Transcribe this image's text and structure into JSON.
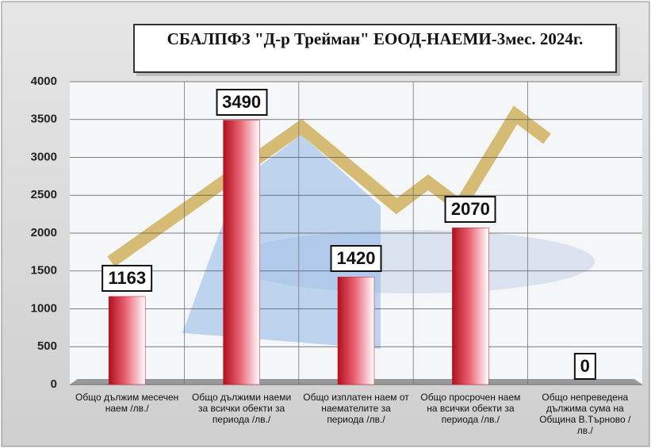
{
  "chart_data": {
    "type": "bar",
    "title": "СБАЛПФЗ \"Д-р Трейман\" ЕООД-НАЕМИ-3мес. 2024г.",
    "categories": [
      "Общо дължим месечен наем /лв./",
      "Общо дължими наеми за всички обекти за периода /лв./",
      "Общо изплатен наем от наемателите за периода /лв./",
      "Общо просрочен наем на всички обекти за периода /лв./",
      "Общо непреведена дължима сума на Община В.Търново /лв./"
    ],
    "values": [
      1163,
      3490,
      1420,
      2070,
      0
    ],
    "color": "#c8102e",
    "ylim": [
      0,
      4000
    ],
    "yticks": [
      0,
      500,
      1000,
      1500,
      2000,
      2500,
      3000,
      3500,
      4000
    ],
    "grid": true
  }
}
